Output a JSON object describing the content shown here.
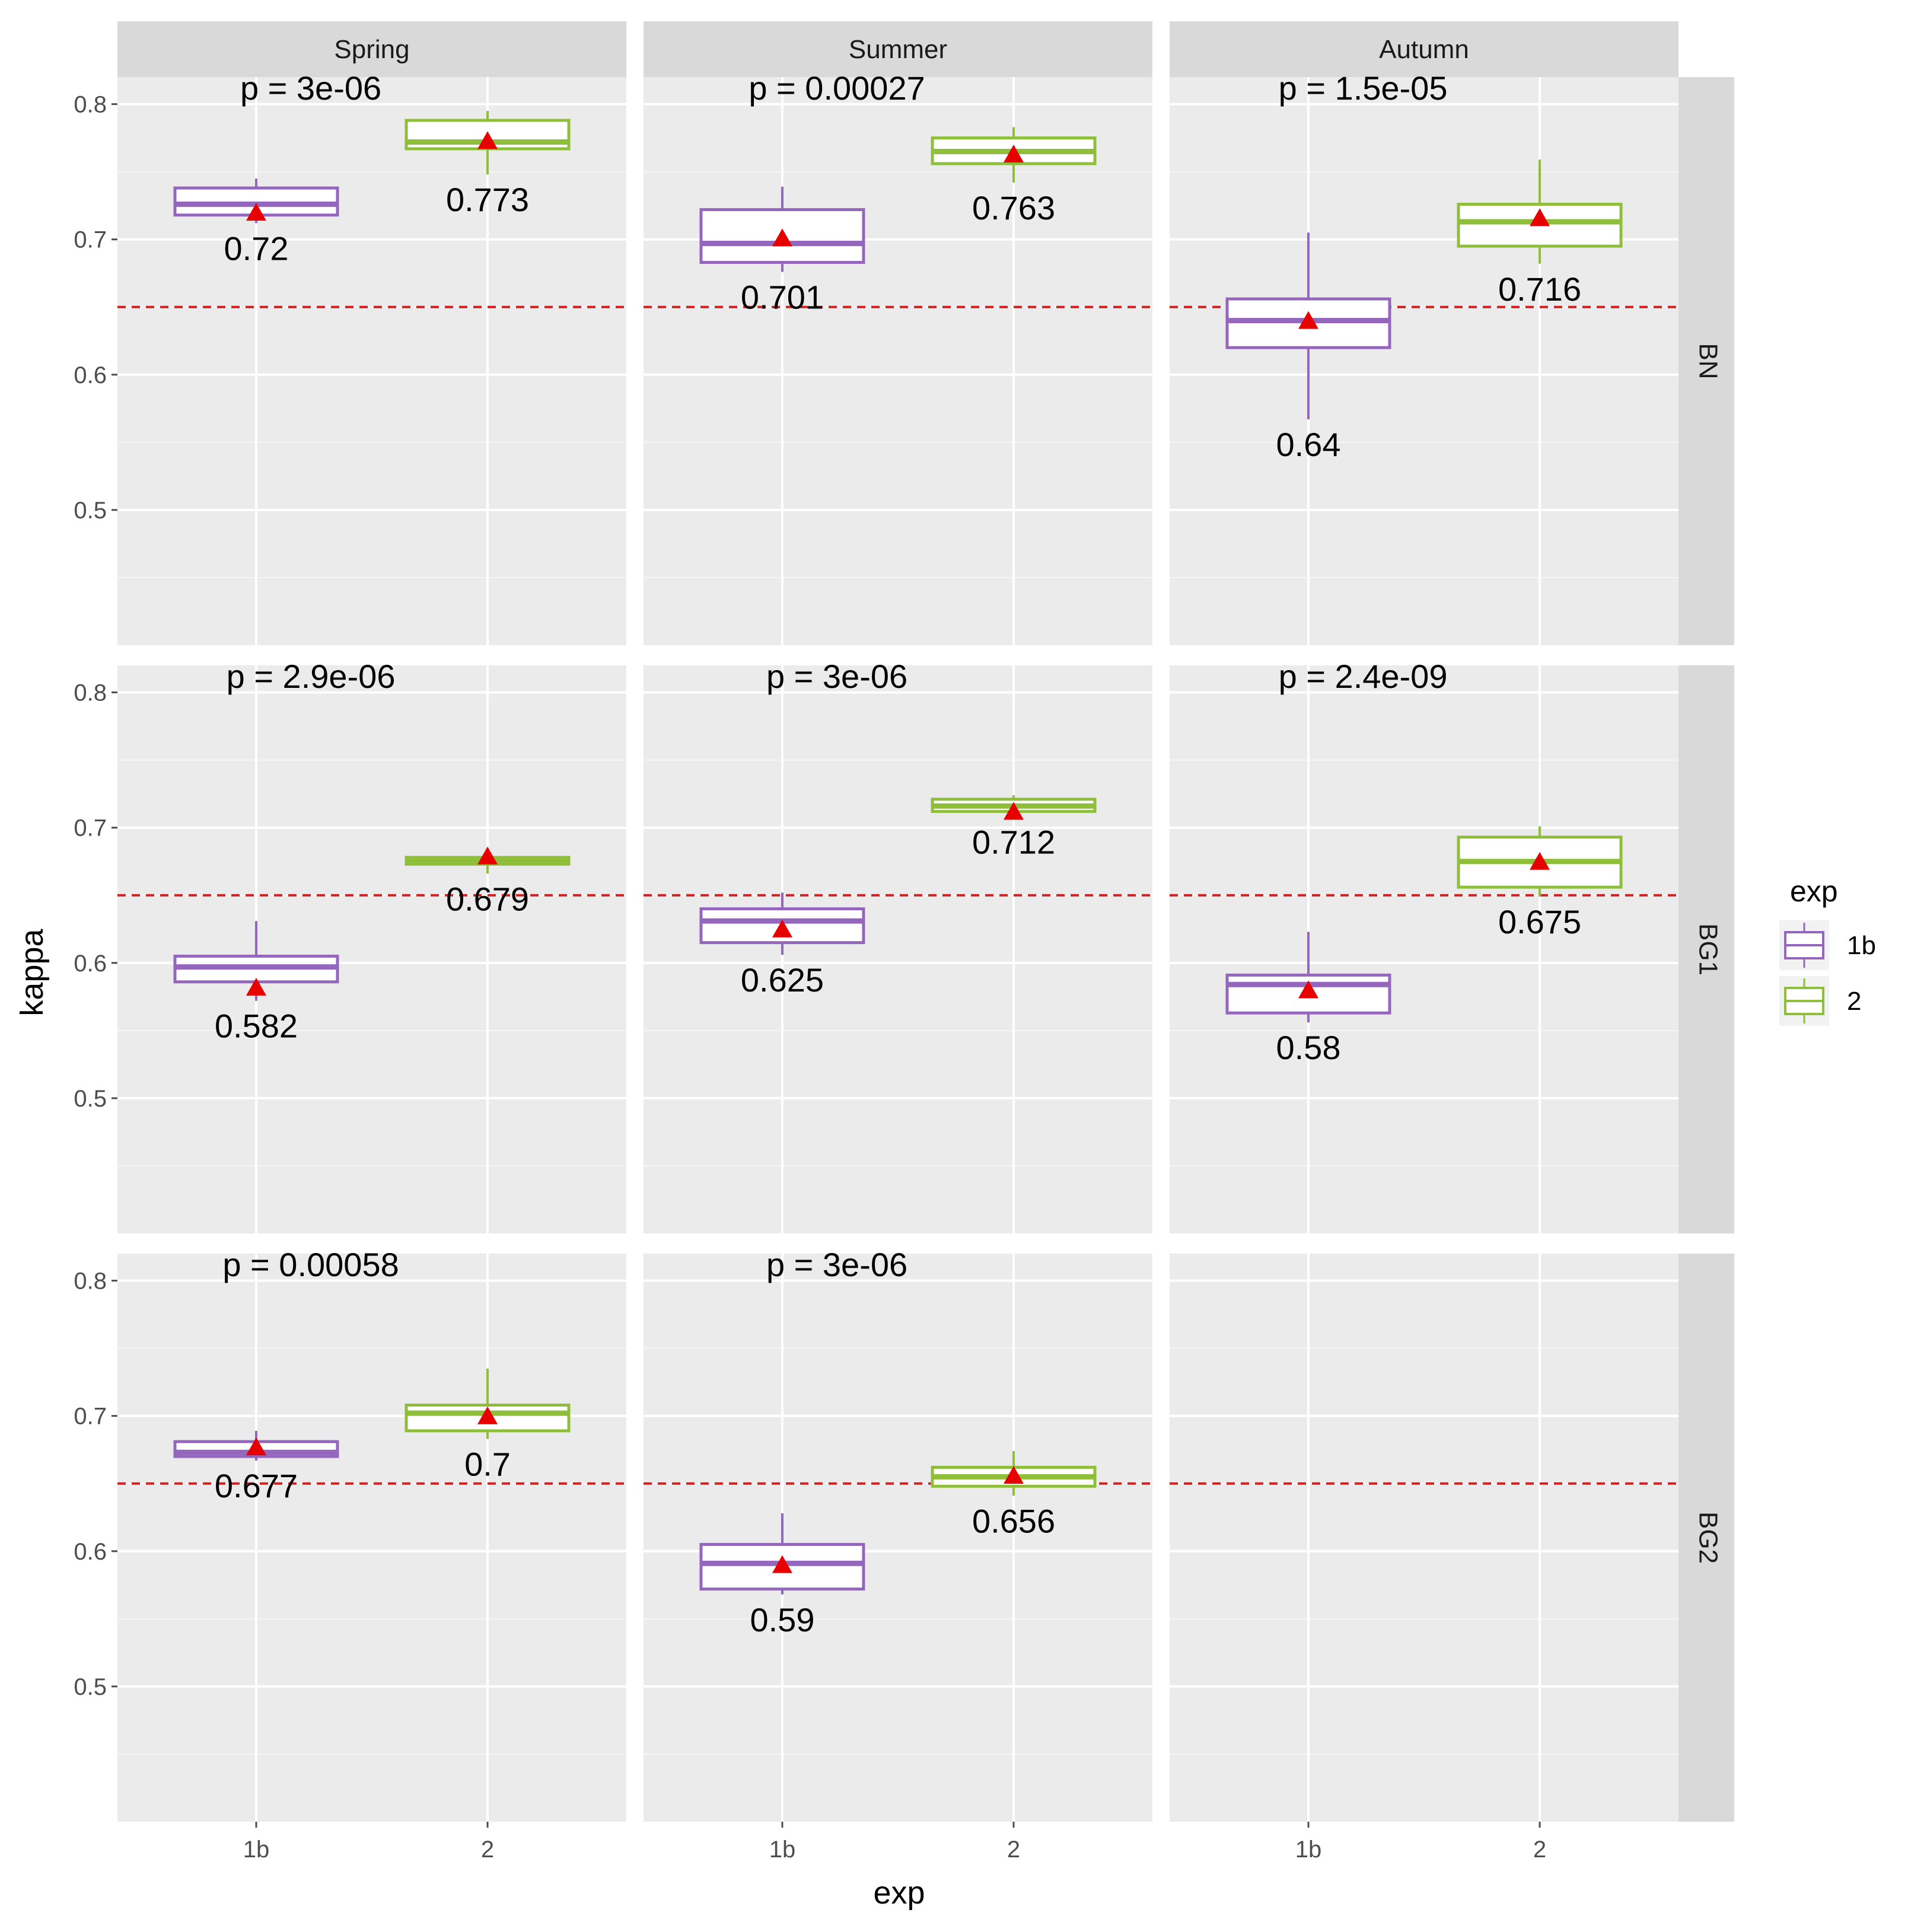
{
  "chart_data": {
    "type": "boxplot",
    "xlabel": "exp",
    "ylabel": "kappa",
    "ylim": [
      0.4,
      0.82
    ],
    "yticks": [
      0.5,
      0.6,
      0.7,
      0.8
    ],
    "y_tick_labels": [
      "0.5",
      "0.6",
      "0.7",
      "0.8"
    ],
    "categories": [
      "1b",
      "2"
    ],
    "columns": [
      "Spring",
      "Summer",
      "Autumn"
    ],
    "rows": [
      "BN",
      "BG1",
      "BG2"
    ],
    "reference_line": 0.65,
    "colors": {
      "1b": "#9467bd",
      "2": "#8fbf3a",
      "mean_marker": "#e60000",
      "reference_line": "#cc2222",
      "panel_bg": "#ebebeb",
      "strip_bg": "#d9d9d9"
    },
    "legend": {
      "title": "exp",
      "entries": [
        "1b",
        "2"
      ],
      "position": "right"
    },
    "panels": [
      {
        "row": "BN",
        "col": "Spring",
        "p_label": "p = 3e-06",
        "boxes": [
          {
            "exp": "1b",
            "low": 0.712,
            "q1": 0.718,
            "median": 0.726,
            "q3": 0.738,
            "high": 0.745,
            "mean": 0.72,
            "label": "0.72"
          },
          {
            "exp": "2",
            "low": 0.748,
            "q1": 0.767,
            "median": 0.772,
            "q3": 0.788,
            "high": 0.795,
            "mean": 0.773,
            "label": "0.773"
          }
        ]
      },
      {
        "row": "BN",
        "col": "Summer",
        "p_label": "p = 0.00027",
        "boxes": [
          {
            "exp": "1b",
            "low": 0.676,
            "q1": 0.683,
            "median": 0.697,
            "q3": 0.722,
            "high": 0.739,
            "mean": 0.701,
            "label": "0.701"
          },
          {
            "exp": "2",
            "low": 0.742,
            "q1": 0.756,
            "median": 0.765,
            "q3": 0.775,
            "high": 0.783,
            "mean": 0.763,
            "label": "0.763"
          }
        ]
      },
      {
        "row": "BN",
        "col": "Autumn",
        "p_label": "p = 1.5e-05",
        "boxes": [
          {
            "exp": "1b",
            "low": 0.567,
            "q1": 0.62,
            "median": 0.64,
            "q3": 0.656,
            "high": 0.705,
            "mean": 0.64,
            "label": "0.64"
          },
          {
            "exp": "2",
            "low": 0.682,
            "q1": 0.695,
            "median": 0.713,
            "q3": 0.726,
            "high": 0.759,
            "mean": 0.716,
            "label": "0.716"
          }
        ]
      },
      {
        "row": "BG1",
        "col": "Spring",
        "p_label": "p = 2.9e-06",
        "boxes": [
          {
            "exp": "1b",
            "low": 0.572,
            "q1": 0.586,
            "median": 0.597,
            "q3": 0.605,
            "high": 0.631,
            "mean": 0.582,
            "label": "0.582"
          },
          {
            "exp": "2",
            "low": 0.666,
            "q1": 0.673,
            "median": 0.675,
            "q3": 0.678,
            "high": 0.682,
            "mean": 0.679,
            "label": "0.679"
          }
        ]
      },
      {
        "row": "BG1",
        "col": "Summer",
        "p_label": "p = 3e-06",
        "boxes": [
          {
            "exp": "1b",
            "low": 0.606,
            "q1": 0.615,
            "median": 0.631,
            "q3": 0.64,
            "high": 0.652,
            "mean": 0.625,
            "label": "0.625"
          },
          {
            "exp": "2",
            "low": 0.708,
            "q1": 0.712,
            "median": 0.716,
            "q3": 0.721,
            "high": 0.724,
            "mean": 0.712,
            "label": "0.712"
          }
        ]
      },
      {
        "row": "BG1",
        "col": "Autumn",
        "p_label": "p = 2.4e-09",
        "boxes": [
          {
            "exp": "1b",
            "low": 0.556,
            "q1": 0.563,
            "median": 0.584,
            "q3": 0.591,
            "high": 0.623,
            "mean": 0.58,
            "label": "0.58"
          },
          {
            "exp": "2",
            "low": 0.649,
            "q1": 0.656,
            "median": 0.675,
            "q3": 0.693,
            "high": 0.701,
            "mean": 0.675,
            "label": "0.675"
          }
        ]
      },
      {
        "row": "BG2",
        "col": "Spring",
        "p_label": "p = 0.00058",
        "boxes": [
          {
            "exp": "1b",
            "low": 0.667,
            "q1": 0.67,
            "median": 0.673,
            "q3": 0.681,
            "high": 0.689,
            "mean": 0.677,
            "label": "0.677"
          },
          {
            "exp": "2",
            "low": 0.683,
            "q1": 0.689,
            "median": 0.702,
            "q3": 0.708,
            "high": 0.735,
            "mean": 0.7,
            "label": "0.7"
          }
        ]
      },
      {
        "row": "BG2",
        "col": "Summer",
        "p_label": "p = 3e-06",
        "boxes": [
          {
            "exp": "1b",
            "low": 0.568,
            "q1": 0.572,
            "median": 0.591,
            "q3": 0.605,
            "high": 0.628,
            "mean": 0.59,
            "label": "0.59"
          },
          {
            "exp": "2",
            "low": 0.641,
            "q1": 0.648,
            "median": 0.655,
            "q3": 0.662,
            "high": 0.674,
            "mean": 0.656,
            "label": "0.656"
          }
        ]
      },
      {
        "row": "BG2",
        "col": "Autumn",
        "p_label": "",
        "boxes": []
      }
    ]
  }
}
